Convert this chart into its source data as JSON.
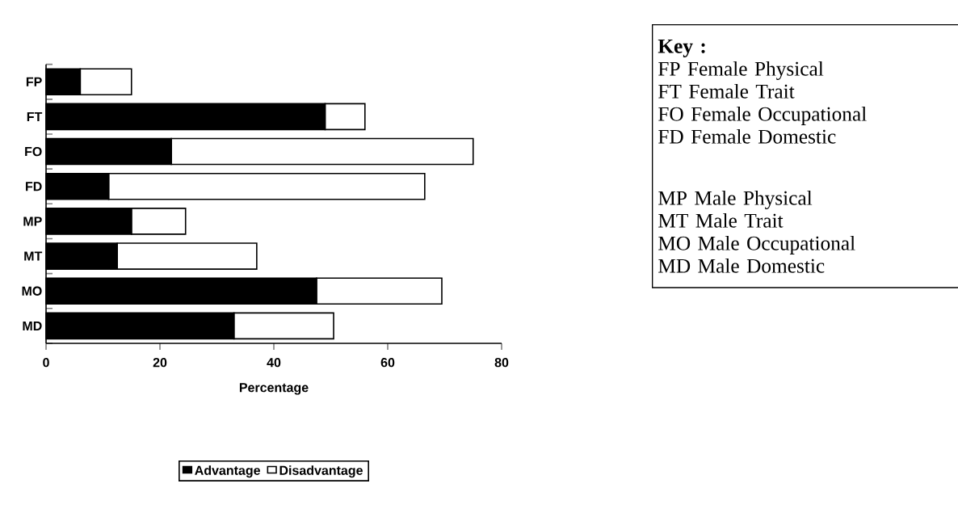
{
  "chart_data": {
    "type": "bar",
    "orientation": "horizontal",
    "stacked": true,
    "categories": [
      "FP",
      "FT",
      "FO",
      "FD",
      "MP",
      "MT",
      "MO",
      "MD"
    ],
    "series": [
      {
        "name": "Advantage",
        "color": "#000000",
        "values": [
          6,
          49,
          22,
          11,
          15,
          12.5,
          47.5,
          33
        ]
      },
      {
        "name": "Disadvantage",
        "color": "#ffffff",
        "values": [
          9,
          7,
          53,
          55.5,
          9.5,
          24.5,
          22,
          17.5
        ]
      }
    ],
    "xlim": [
      0,
      80
    ],
    "xticks": [
      0,
      20,
      40,
      60,
      80
    ],
    "xlabel": "Percentage",
    "legend": "bottom",
    "grid": false,
    "annotations": [
      "Key :",
      "FP Female Physical",
      "FT Female Trait",
      "FO Female Occupational",
      "FD Female Domestic",
      "MP Male Physical",
      "MT Male Trait",
      "MO Male Occupational",
      "MD Male Domestic"
    ]
  }
}
